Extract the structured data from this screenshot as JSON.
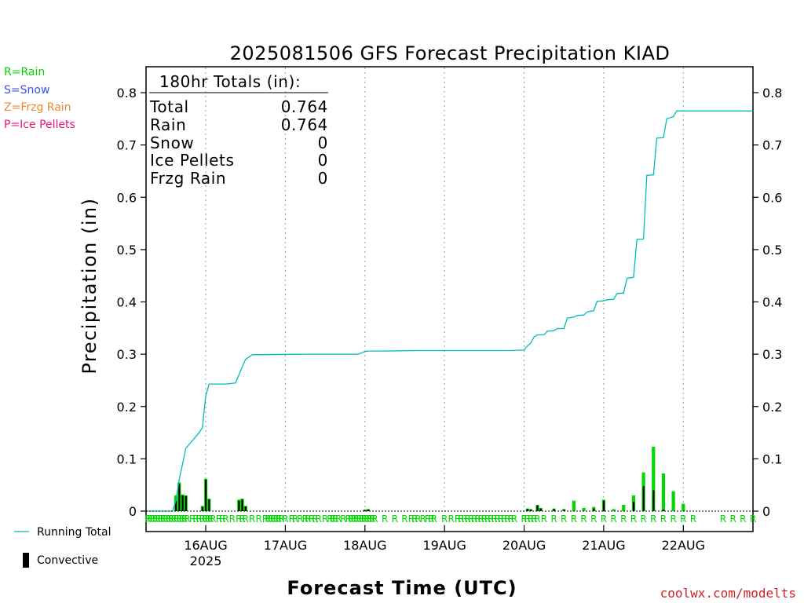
{
  "colors": {
    "rain": "#00d800",
    "snow": "#3355ee",
    "frzg_rain": "#ee8833",
    "ice_pellets": "#ee1177",
    "running_total": "#00bbbb",
    "convective": "#000000",
    "credit": "#cc2222"
  },
  "legend_top": {
    "rain": "R=Rain",
    "snow": "S=Snow",
    "frzg_rain": "Z=Frzg Rain",
    "ice_pellets": "P=Ice Pellets"
  },
  "legend_bottom": {
    "running_total": "Running Total",
    "convective": "Convective"
  },
  "totals": {
    "header": "180hr Totals (in):",
    "rows": [
      {
        "label": "Total",
        "value": "0.764"
      },
      {
        "label": "Rain",
        "value": "0.764"
      },
      {
        "label": "Snow",
        "value": "0"
      },
      {
        "label": "Ice Pellets",
        "value": "0"
      },
      {
        "label": "Frzg Rain",
        "value": "0"
      }
    ]
  },
  "credit": "coolwx.com/modelts",
  "chart_data": {
    "type": "bar",
    "title": "2025081506 GFS Forecast Precipitation KIAD",
    "xlabel": "Forecast Time (UTC)",
    "ylabel": "Precipitation (in)",
    "ylim": [
      0,
      0.85
    ],
    "yticks": [
      0,
      0.1,
      0.2,
      0.3,
      0.4,
      0.5,
      0.6,
      0.7,
      0.8
    ],
    "ytick_labels": [
      "0",
      "0.1",
      "0.2",
      "0.3",
      "0.4",
      "0.5",
      "0.6",
      "0.7",
      "0.8"
    ],
    "x_units": "forecast hour",
    "xlim": [
      0,
      183
    ],
    "xticks": [
      {
        "hour": 18,
        "label": "16AUG",
        "sublabel": "2025"
      },
      {
        "hour": 42,
        "label": "17AUG"
      },
      {
        "hour": 66,
        "label": "18AUG"
      },
      {
        "hour": 90,
        "label": "19AUG"
      },
      {
        "hour": 114,
        "label": "20AUG"
      },
      {
        "hour": 138,
        "label": "21AUG"
      },
      {
        "hour": 162,
        "label": "22AUG"
      }
    ],
    "grid": "vertical dotted at day boundaries",
    "precip_bars": [
      {
        "hour": 9,
        "total": 0.03,
        "convective": 0.02
      },
      {
        "hour": 10,
        "total": 0.055,
        "convective": 0.052
      },
      {
        "hour": 11,
        "total": 0.032,
        "convective": 0.03
      },
      {
        "hour": 12,
        "total": 0.03,
        "convective": 0.029
      },
      {
        "hour": 17,
        "total": 0.01,
        "convective": 0.008
      },
      {
        "hour": 18,
        "total": 0.062,
        "convective": 0.06
      },
      {
        "hour": 19,
        "total": 0.024,
        "convective": 0.022
      },
      {
        "hour": 28,
        "total": 0.022,
        "convective": 0.02
      },
      {
        "hour": 29,
        "total": 0.024,
        "convective": 0.022
      },
      {
        "hour": 30,
        "total": 0.01,
        "convective": 0.009
      },
      {
        "hour": 66,
        "total": 0.003,
        "convective": 0.002
      },
      {
        "hour": 67,
        "total": 0.004,
        "convective": 0.003
      },
      {
        "hour": 115,
        "total": 0.005,
        "convective": 0.004
      },
      {
        "hour": 116,
        "total": 0.004,
        "convective": 0.003
      },
      {
        "hour": 118,
        "total": 0.012,
        "convective": 0.011
      },
      {
        "hour": 119,
        "total": 0.006,
        "convective": 0.005
      },
      {
        "hour": 123,
        "total": 0.005,
        "convective": 0.004
      },
      {
        "hour": 126,
        "total": 0.004,
        "convective": 0.003
      },
      {
        "hour": 129,
        "total": 0.02,
        "convective": 0.0
      },
      {
        "hour": 132,
        "total": 0.006,
        "convective": 0.0
      },
      {
        "hour": 135,
        "total": 0.008,
        "convective": 0.005
      },
      {
        "hour": 138,
        "total": 0.022,
        "convective": 0.02
      },
      {
        "hour": 141,
        "total": 0.004,
        "convective": 0.0
      },
      {
        "hour": 144,
        "total": 0.012,
        "convective": 0.0
      },
      {
        "hour": 147,
        "total": 0.03,
        "convective": 0.018
      },
      {
        "hour": 150,
        "total": 0.074,
        "convective": 0.048
      },
      {
        "hour": 153,
        "total": 0.123,
        "convective": 0.04
      },
      {
        "hour": 156,
        "total": 0.072,
        "convective": 0.003
      },
      {
        "hour": 159,
        "total": 0.038,
        "convective": 0.0
      },
      {
        "hour": 162,
        "total": 0.014,
        "convective": 0.0
      }
    ],
    "running_total": {
      "name": "Running Total",
      "x": [
        0,
        8,
        9,
        10,
        11,
        12,
        16,
        17,
        17.5,
        18,
        19,
        24,
        27,
        28.5,
        30,
        32,
        48,
        58,
        64,
        66,
        67,
        72,
        82,
        90,
        100,
        110,
        114,
        115,
        116,
        117,
        118,
        120,
        121,
        123,
        124,
        126,
        127,
        129,
        130,
        132,
        133,
        135,
        136,
        138,
        139,
        141,
        142,
        144,
        145,
        147,
        148,
        150,
        151,
        153,
        154,
        156,
        157,
        159,
        160,
        162,
        183
      ],
      "y": [
        0,
        0,
        0.02,
        0.06,
        0.09,
        0.12,
        0.15,
        0.16,
        0.19,
        0.22,
        0.243,
        0.243,
        0.245,
        0.268,
        0.29,
        0.299,
        0.3,
        0.3,
        0.3,
        0.305,
        0.306,
        0.306,
        0.307,
        0.307,
        0.307,
        0.307,
        0.308,
        0.316,
        0.321,
        0.333,
        0.337,
        0.337,
        0.344,
        0.345,
        0.349,
        0.349,
        0.369,
        0.371,
        0.374,
        0.375,
        0.381,
        0.383,
        0.401,
        0.402,
        0.404,
        0.405,
        0.416,
        0.417,
        0.445,
        0.447,
        0.52,
        0.52,
        0.642,
        0.643,
        0.713,
        0.714,
        0.75,
        0.754,
        0.765,
        0.765,
        0.765
      ]
    },
    "ptype_row": {
      "note": "precipitation type letter markers along the bottom of the plot",
      "letter": "R",
      "hours": [
        0.5,
        1.2,
        2,
        2.8,
        3.6,
        4.4,
        5.2,
        6,
        6.8,
        7.6,
        8.4,
        9.2,
        10,
        10.8,
        11.6,
        12.4,
        14,
        15,
        16,
        17,
        17.8,
        18.6,
        19.4,
        20.2,
        22,
        23,
        24,
        26,
        28,
        29,
        30,
        32,
        34,
        36,
        36.8,
        37.6,
        38.4,
        39.2,
        40,
        40.8,
        42,
        44,
        45,
        46.5,
        48,
        48.8,
        50,
        51,
        52,
        54,
        55.5,
        56.3,
        57.1,
        58,
        59.5,
        61,
        61.8,
        62.6,
        63.4,
        64.2,
        65,
        65.8,
        66.6,
        67.4,
        68.2,
        69,
        72,
        75,
        78,
        80,
        81,
        82,
        83.5,
        85,
        86,
        86.8,
        90,
        92,
        94,
        95,
        96,
        97,
        98,
        99,
        100,
        101,
        102,
        103,
        104,
        105,
        106,
        107,
        108,
        109,
        110,
        111,
        114,
        115,
        116,
        117,
        118,
        120,
        123,
        126,
        129,
        132,
        135,
        138,
        141,
        144,
        147,
        150,
        153,
        156,
        159,
        162,
        165,
        174,
        177,
        180,
        183
      ]
    }
  }
}
